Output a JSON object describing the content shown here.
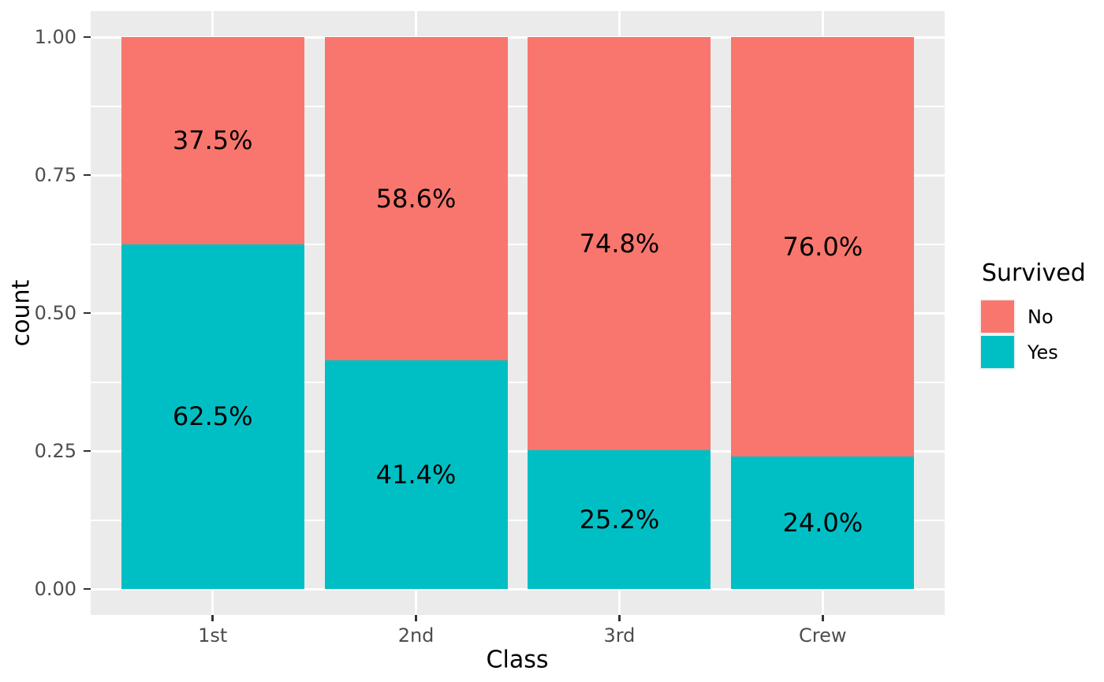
{
  "figure": {
    "background": "#FFFFFF",
    "panel_background": "#EBEBEB",
    "gridline_color": "#FFFFFF",
    "tick_mark_color": "#333333",
    "tick_label_color": "#4D4D4D",
    "text_color": "#000000"
  },
  "chart_data": {
    "type": "bar",
    "subtype": "stacked-proportion",
    "title": "",
    "xlabel": "Class",
    "ylabel": "count",
    "categories": [
      "1st",
      "2nd",
      "3rd",
      "Crew"
    ],
    "series": [
      {
        "name": "No",
        "color": "#F8766D",
        "values": [
          0.375,
          0.586,
          0.748,
          0.76
        ],
        "labels": [
          "37.5%",
          "58.6%",
          "74.8%",
          "76.0%"
        ]
      },
      {
        "name": "Yes",
        "color": "#00BFC4",
        "values": [
          0.625,
          0.414,
          0.252,
          0.24
        ],
        "labels": [
          "62.5%",
          "41.4%",
          "25.2%",
          "24.0%"
        ]
      }
    ],
    "stack_order_top_to_bottom": [
      "No",
      "Yes"
    ],
    "ylim": [
      0,
      1
    ],
    "y_ticks": [
      {
        "value": 0.0,
        "label": "0.00"
      },
      {
        "value": 0.25,
        "label": "0.25"
      },
      {
        "value": 0.5,
        "label": "0.50"
      },
      {
        "value": 0.75,
        "label": "0.75"
      },
      {
        "value": 1.0,
        "label": "1.00"
      }
    ],
    "y_minor_ticks": [
      0.125,
      0.375,
      0.625,
      0.875
    ],
    "grid": {
      "major": true,
      "minor": true
    },
    "legend": {
      "title": "Survived",
      "position": "right",
      "entries": [
        {
          "label": "No",
          "color": "#F8766D"
        },
        {
          "label": "Yes",
          "color": "#00BFC4"
        }
      ]
    }
  }
}
